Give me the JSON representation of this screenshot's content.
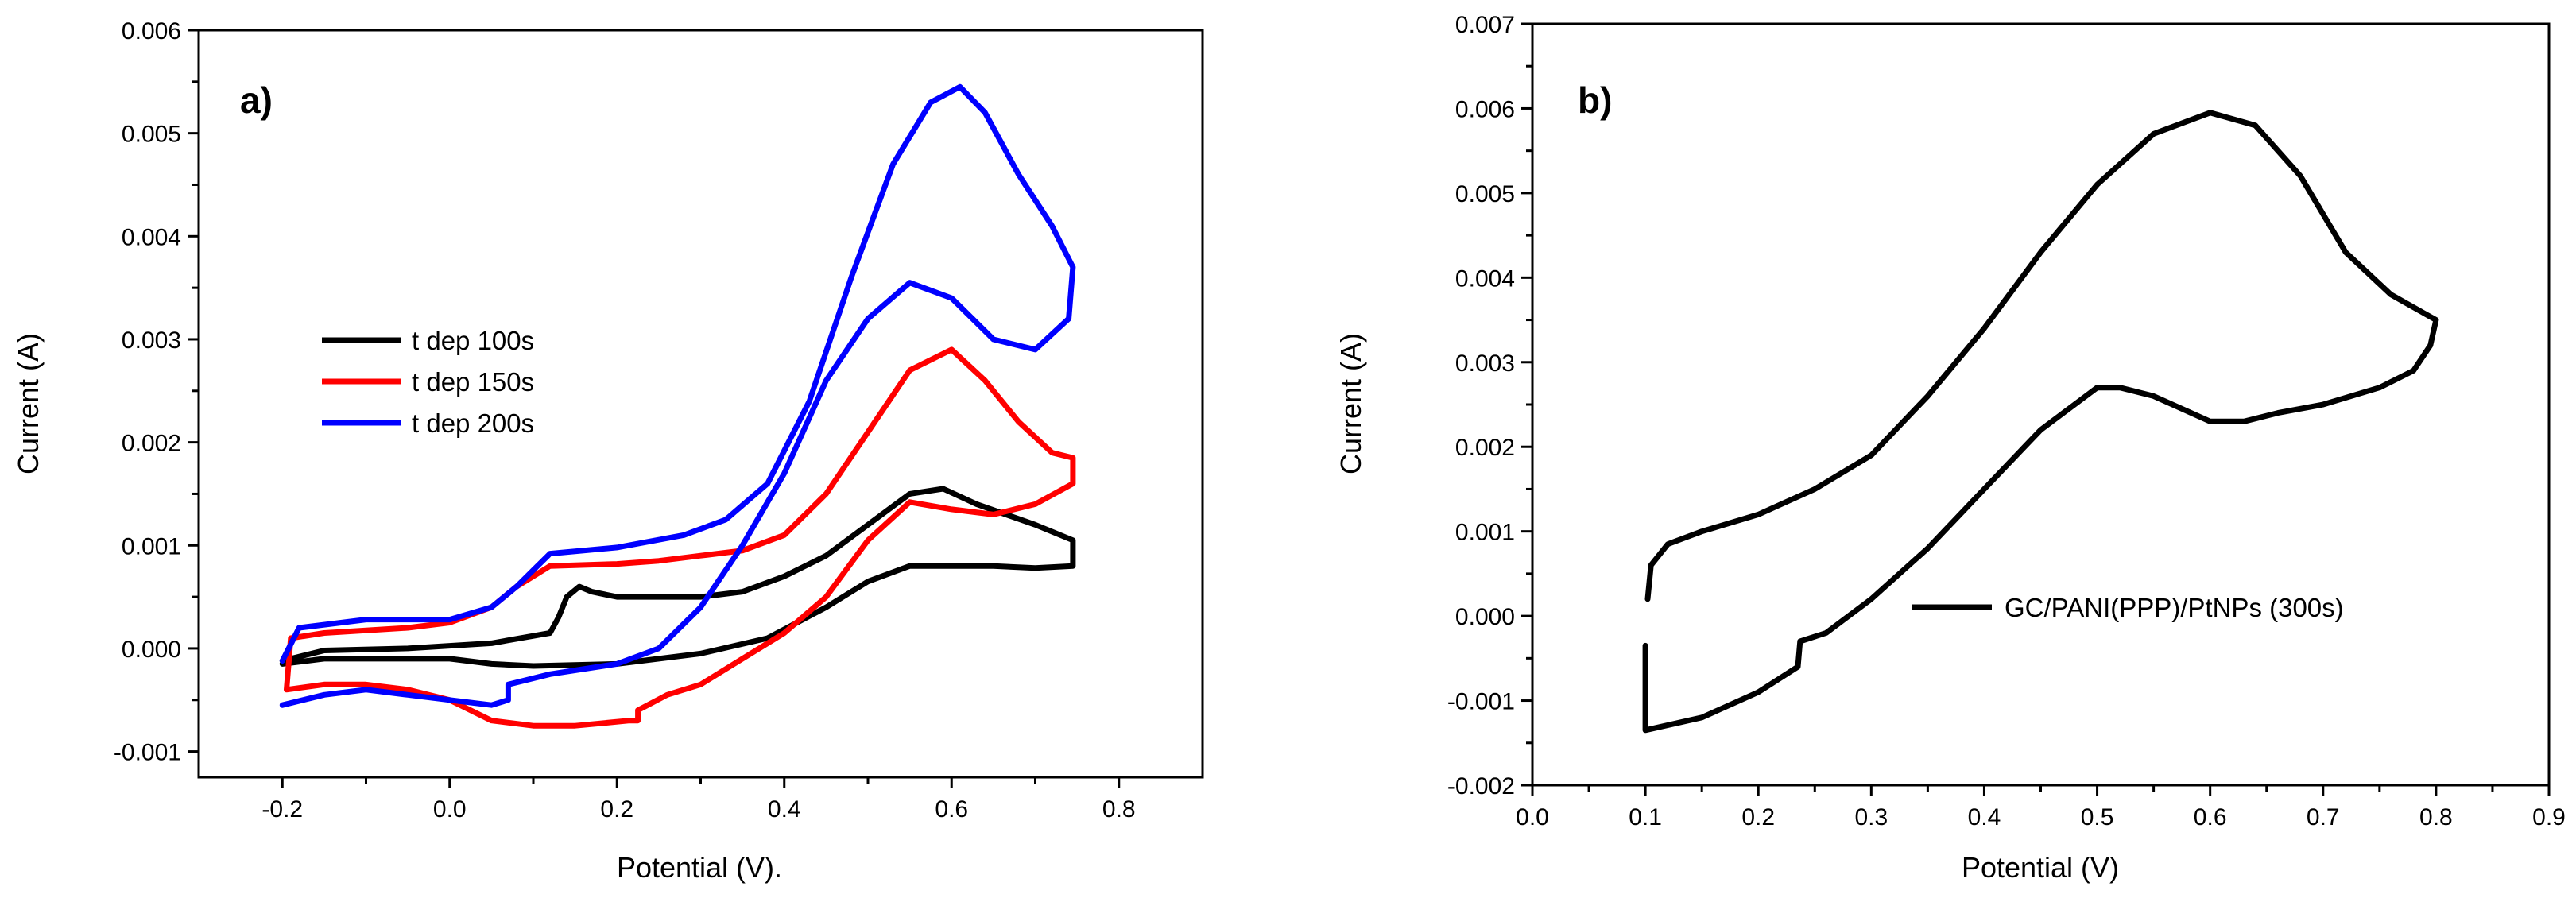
{
  "chart_data": [
    {
      "type": "line",
      "panel_label": "a)",
      "xlabel": "Potential (V).",
      "ylabel": "Current (A)",
      "xlim": [
        -0.3,
        0.9
      ],
      "ylim": [
        -0.00125,
        0.006
      ],
      "xticks": [
        -0.2,
        0.0,
        0.2,
        0.4,
        0.6,
        0.8
      ],
      "xtick_labels": [
        "-0.2",
        "0.0",
        "0.2",
        "0.4",
        "0.6",
        "0.8"
      ],
      "yticks": [
        -0.001,
        0.0,
        0.001,
        0.002,
        0.003,
        0.004,
        0.005,
        0.006
      ],
      "ytick_labels": [
        "-0.001",
        "0.000",
        "0.001",
        "0.002",
        "0.003",
        "0.004",
        "0.005",
        "0.006"
      ],
      "legend_position": "center-left",
      "series": [
        {
          "name": "t dep 100s",
          "color": "#000000",
          "points": [
            [
              -0.2,
              -0.00015
            ],
            [
              -0.15,
              -0.0001
            ],
            [
              -0.05,
              -0.0001
            ],
            [
              0.0,
              -0.0001
            ],
            [
              0.05,
              -0.00015
            ],
            [
              0.1,
              -0.00017
            ],
            [
              0.2,
              -0.00015
            ],
            [
              0.3,
              -5e-05
            ],
            [
              0.38,
              0.0001
            ],
            [
              0.45,
              0.0004
            ],
            [
              0.5,
              0.00065
            ],
            [
              0.55,
              0.0008
            ],
            [
              0.6,
              0.0008
            ],
            [
              0.65,
              0.0008
            ],
            [
              0.7,
              0.00078
            ],
            [
              0.745,
              0.0008
            ],
            [
              0.745,
              0.00105
            ],
            [
              0.7,
              0.0012
            ],
            [
              0.63,
              0.0014
            ],
            [
              0.59,
              0.00155
            ],
            [
              0.55,
              0.0015
            ],
            [
              0.5,
              0.0012
            ],
            [
              0.45,
              0.0009
            ],
            [
              0.4,
              0.0007
            ],
            [
              0.35,
              0.00055
            ],
            [
              0.3,
              0.0005
            ],
            [
              0.25,
              0.0005
            ],
            [
              0.2,
              0.0005
            ],
            [
              0.17,
              0.00055
            ],
            [
              0.155,
              0.0006
            ],
            [
              0.14,
              0.0005
            ],
            [
              0.13,
              0.0003
            ],
            [
              0.12,
              0.00015
            ],
            [
              0.05,
              5e-05
            ],
            [
              -0.05,
              0.0
            ],
            [
              -0.15,
              -2e-05
            ],
            [
              -0.2,
              -0.00012
            ]
          ]
        },
        {
          "name": "t dep 150s",
          "color": "#ff0000",
          "points": [
            [
              -0.195,
              -0.0004
            ],
            [
              -0.15,
              -0.00035
            ],
            [
              -0.1,
              -0.00035
            ],
            [
              -0.05,
              -0.0004
            ],
            [
              0.0,
              -0.0005
            ],
            [
              0.05,
              -0.0007
            ],
            [
              0.1,
              -0.00075
            ],
            [
              0.15,
              -0.00075
            ],
            [
              0.215,
              -0.0007
            ],
            [
              0.225,
              -0.0007
            ],
            [
              0.225,
              -0.0006
            ],
            [
              0.26,
              -0.00045
            ],
            [
              0.3,
              -0.00035
            ],
            [
              0.35,
              -0.0001
            ],
            [
              0.4,
              0.00015
            ],
            [
              0.45,
              0.0005
            ],
            [
              0.5,
              0.00105
            ],
            [
              0.55,
              0.00142
            ],
            [
              0.6,
              0.00135
            ],
            [
              0.65,
              0.0013
            ],
            [
              0.7,
              0.0014
            ],
            [
              0.745,
              0.0016
            ],
            [
              0.745,
              0.00185
            ],
            [
              0.72,
              0.0019
            ],
            [
              0.68,
              0.0022
            ],
            [
              0.64,
              0.0026
            ],
            [
              0.6,
              0.0029
            ],
            [
              0.55,
              0.0027
            ],
            [
              0.5,
              0.0021
            ],
            [
              0.45,
              0.0015
            ],
            [
              0.4,
              0.0011
            ],
            [
              0.35,
              0.00095
            ],
            [
              0.3,
              0.0009
            ],
            [
              0.25,
              0.00085
            ],
            [
              0.2,
              0.00082
            ],
            [
              0.12,
              0.0008
            ],
            [
              0.08,
              0.0006
            ],
            [
              0.05,
              0.0004
            ],
            [
              0.0,
              0.00025
            ],
            [
              -0.05,
              0.0002
            ],
            [
              -0.15,
              0.00015
            ],
            [
              -0.19,
              0.0001
            ],
            [
              -0.195,
              -0.0004
            ]
          ]
        },
        {
          "name": "t dep 200s",
          "color": "#0000ff",
          "points": [
            [
              -0.2,
              -0.00055
            ],
            [
              -0.15,
              -0.00045
            ],
            [
              -0.1,
              -0.0004
            ],
            [
              -0.05,
              -0.00045
            ],
            [
              0.0,
              -0.0005
            ],
            [
              0.05,
              -0.00055
            ],
            [
              0.07,
              -0.0005
            ],
            [
              0.07,
              -0.00035
            ],
            [
              0.12,
              -0.00025
            ],
            [
              0.2,
              -0.00015
            ],
            [
              0.25,
              0.0
            ],
            [
              0.3,
              0.0004
            ],
            [
              0.35,
              0.001
            ],
            [
              0.4,
              0.0017
            ],
            [
              0.45,
              0.0026
            ],
            [
              0.5,
              0.0032
            ],
            [
              0.55,
              0.00355
            ],
            [
              0.6,
              0.0034
            ],
            [
              0.65,
              0.003
            ],
            [
              0.7,
              0.0029
            ],
            [
              0.74,
              0.0032
            ],
            [
              0.745,
              0.0037
            ],
            [
              0.72,
              0.0041
            ],
            [
              0.68,
              0.0046
            ],
            [
              0.64,
              0.0052
            ],
            [
              0.61,
              0.00545
            ],
            [
              0.575,
              0.0053
            ],
            [
              0.53,
              0.0047
            ],
            [
              0.48,
              0.0036
            ],
            [
              0.43,
              0.0024
            ],
            [
              0.38,
              0.0016
            ],
            [
              0.33,
              0.00125
            ],
            [
              0.28,
              0.0011
            ],
            [
              0.2,
              0.00098
            ],
            [
              0.12,
              0.00092
            ],
            [
              0.08,
              0.0006
            ],
            [
              0.05,
              0.0004
            ],
            [
              0.0,
              0.00028
            ],
            [
              -0.1,
              0.00028
            ],
            [
              -0.18,
              0.0002
            ],
            [
              -0.2,
              -0.00012
            ]
          ]
        }
      ]
    },
    {
      "type": "line",
      "panel_label": "b)",
      "xlabel": "Potential (V)",
      "ylabel": "Current (A)",
      "xlim": [
        0.0,
        0.9
      ],
      "ylim": [
        -0.002,
        0.007
      ],
      "xticks": [
        0.0,
        0.1,
        0.2,
        0.3,
        0.4,
        0.5,
        0.6,
        0.7,
        0.8,
        0.9
      ],
      "xtick_labels": [
        "0.0",
        "0.1",
        "0.2",
        "0.3",
        "0.4",
        "0.5",
        "0.6",
        "0.7",
        "0.8",
        "0.9"
      ],
      "yticks": [
        -0.002,
        -0.001,
        0.0,
        0.001,
        0.002,
        0.003,
        0.004,
        0.005,
        0.006,
        0.007
      ],
      "ytick_labels": [
        "-0.002",
        "-0.001",
        "0.000",
        "0.001",
        "0.002",
        "0.003",
        "0.004",
        "0.005",
        "0.006",
        "0.007"
      ],
      "legend_position": "center-right",
      "series": [
        {
          "name": "GC/PANI(PPP)/PtNPs (300s)",
          "color": "#000000",
          "points": [
            [
              0.1,
              -0.00035
            ],
            [
              0.1,
              -0.00135
            ],
            [
              0.15,
              -0.0012
            ],
            [
              0.2,
              -0.0009
            ],
            [
              0.235,
              -0.0006
            ],
            [
              0.237,
              -0.0003
            ],
            [
              0.26,
              -0.0002
            ],
            [
              0.3,
              0.0002
            ],
            [
              0.35,
              0.0008
            ],
            [
              0.4,
              0.0015
            ],
            [
              0.45,
              0.0022
            ],
            [
              0.5,
              0.0027
            ],
            [
              0.52,
              0.0027
            ],
            [
              0.55,
              0.0026
            ],
            [
              0.6,
              0.0023
            ],
            [
              0.63,
              0.0023
            ],
            [
              0.66,
              0.0024
            ],
            [
              0.7,
              0.0025
            ],
            [
              0.75,
              0.0027
            ],
            [
              0.78,
              0.0029
            ],
            [
              0.795,
              0.0032
            ],
            [
              0.8,
              0.0035
            ],
            [
              0.76,
              0.0038
            ],
            [
              0.72,
              0.0043
            ],
            [
              0.68,
              0.0052
            ],
            [
              0.64,
              0.0058
            ],
            [
              0.6,
              0.00595
            ],
            [
              0.55,
              0.0057
            ],
            [
              0.5,
              0.0051
            ],
            [
              0.45,
              0.0043
            ],
            [
              0.4,
              0.0034
            ],
            [
              0.35,
              0.0026
            ],
            [
              0.3,
              0.0019
            ],
            [
              0.25,
              0.0015
            ],
            [
              0.2,
              0.0012
            ],
            [
              0.15,
              0.001
            ],
            [
              0.12,
              0.00085
            ],
            [
              0.105,
              0.0006
            ],
            [
              0.102,
              0.0002
            ]
          ]
        }
      ]
    }
  ]
}
